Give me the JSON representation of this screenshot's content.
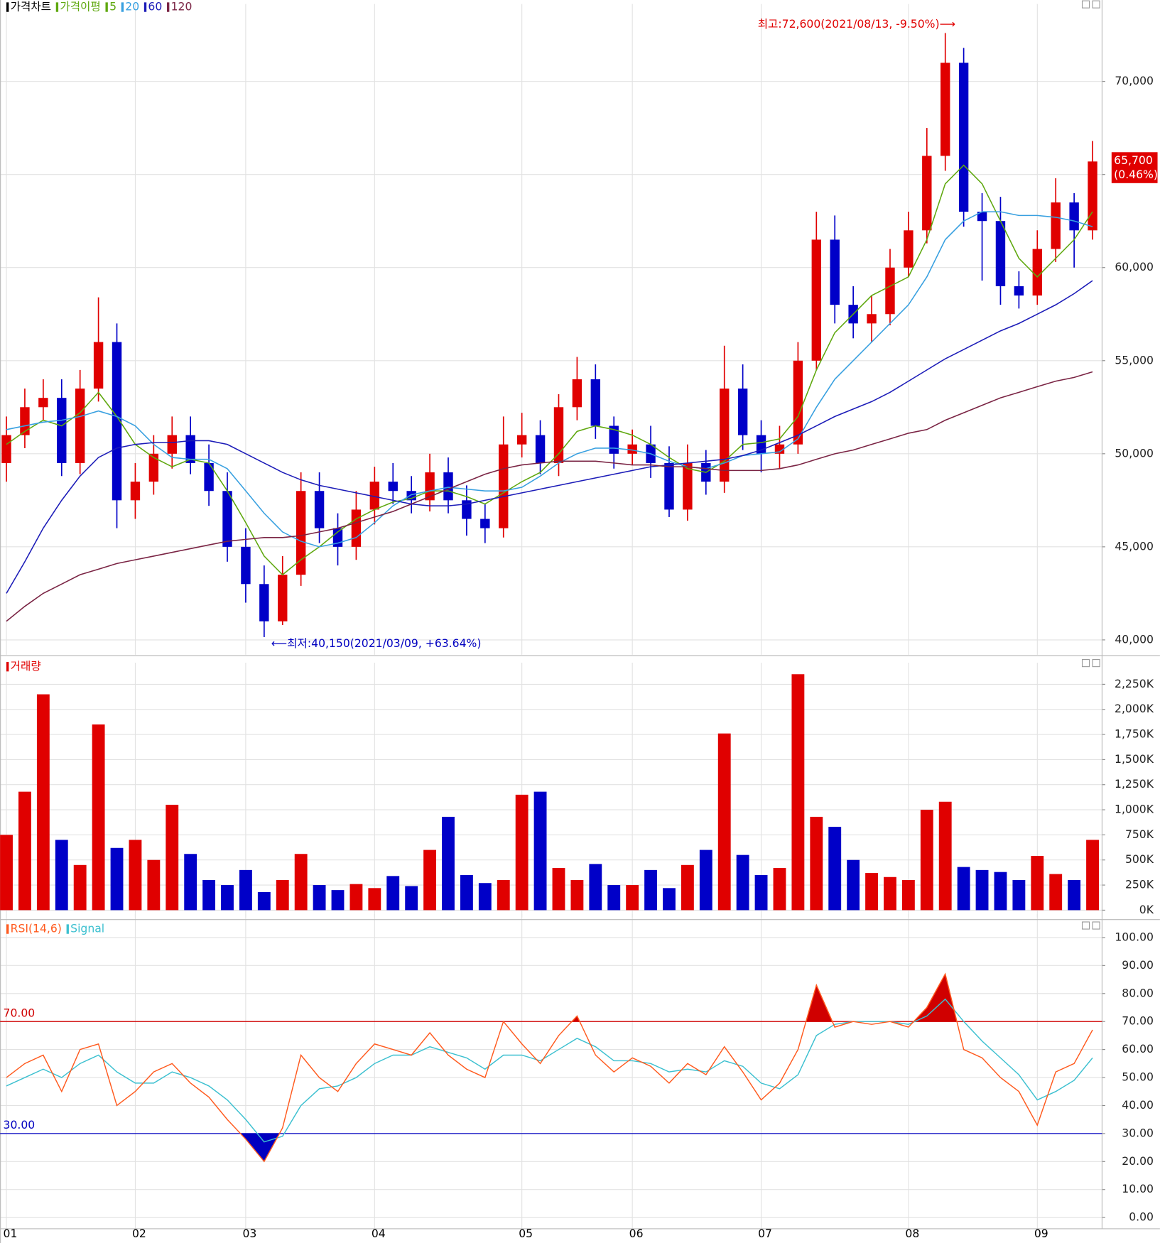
{
  "chart_data": [
    {
      "type": "candlestick",
      "title": "가격차트",
      "ma_title": "가격이평",
      "up_color": "#e00000",
      "down_color": "#0000c8",
      "opens": [
        49500,
        51000,
        52500,
        53000,
        49500,
        53500,
        56000,
        47500,
        48500,
        50000,
        51000,
        49500,
        48000,
        45000,
        43000,
        41000,
        43500,
        48000,
        46000,
        45000,
        47000,
        48500,
        48000,
        47500,
        49000,
        47500,
        46500,
        46000,
        50500,
        51000,
        49500,
        52500,
        54000,
        51500,
        50000,
        50500,
        49500,
        47000,
        49500,
        48500,
        53500,
        51000,
        50000,
        50500,
        55000,
        61500,
        58000,
        57000,
        57500,
        60000,
        62000,
        66000,
        71000,
        63000,
        62500,
        59000,
        58500,
        61000,
        63500,
        62000
      ],
      "highs": [
        52000,
        53500,
        54000,
        54000,
        54500,
        58400,
        57000,
        49500,
        51000,
        52000,
        52000,
        50500,
        49000,
        46000,
        44000,
        44500,
        49000,
        49000,
        46800,
        48000,
        49300,
        49500,
        48800,
        50000,
        49800,
        48300,
        47300,
        52000,
        52200,
        51800,
        53200,
        55200,
        54800,
        52000,
        51300,
        51500,
        50400,
        50500,
        50200,
        55800,
        54800,
        51800,
        51500,
        56000,
        63000,
        62800,
        59000,
        58500,
        61000,
        63000,
        67500,
        72600,
        71800,
        64000,
        63800,
        59800,
        62000,
        64800,
        64000,
        66800
      ],
      "lows": [
        48500,
        50300,
        51800,
        48800,
        48900,
        52800,
        46000,
        46500,
        47800,
        49200,
        48900,
        47200,
        44200,
        42000,
        40150,
        40800,
        42900,
        45200,
        44000,
        44300,
        46200,
        47300,
        46800,
        46900,
        46800,
        45600,
        45200,
        45500,
        49800,
        48900,
        48800,
        51800,
        50800,
        49200,
        49400,
        48700,
        46600,
        46400,
        47800,
        47900,
        50200,
        49000,
        49200,
        50000,
        54500,
        57000,
        56200,
        56000,
        56900,
        59500,
        61300,
        65200,
        62200,
        59300,
        58000,
        57800,
        58000,
        60300,
        60000,
        61500
      ],
      "closes": [
        51000,
        52500,
        53000,
        49500,
        53500,
        56000,
        47500,
        48500,
        50000,
        51000,
        49500,
        48000,
        45000,
        43000,
        41000,
        43500,
        48000,
        46000,
        45000,
        47000,
        48500,
        48000,
        47500,
        49000,
        47500,
        46500,
        46000,
        50500,
        51000,
        49500,
        52500,
        54000,
        51500,
        50000,
        50500,
        49500,
        47000,
        49500,
        48500,
        53500,
        51000,
        50000,
        50500,
        55000,
        61500,
        58000,
        57000,
        57500,
        60000,
        62000,
        66000,
        71000,
        63000,
        62500,
        59000,
        58500,
        61000,
        63500,
        62000,
        65700
      ],
      "series": [
        {
          "name": "5",
          "color": "#5fa80f",
          "values": [
            50500,
            51200,
            51800,
            51500,
            52200,
            53300,
            52000,
            50500,
            49800,
            49300,
            49700,
            49500,
            48000,
            46300,
            44500,
            43500,
            44300,
            45000,
            45800,
            46500,
            47000,
            47400,
            47600,
            48000,
            48000,
            47700,
            47300,
            47900,
            48500,
            49000,
            50000,
            51200,
            51500,
            51300,
            51000,
            50500,
            49800,
            49200,
            49000,
            49600,
            50500,
            50600,
            50800,
            52000,
            54500,
            56500,
            57500,
            58500,
            59000,
            59500,
            61500,
            64500,
            65500,
            64500,
            62500,
            60500,
            59500,
            60500,
            61500,
            63000
          ]
        },
        {
          "name": "20",
          "color": "#38a0e0",
          "values": [
            51300,
            51500,
            51700,
            51800,
            52000,
            52300,
            52000,
            51500,
            50500,
            49800,
            49700,
            49700,
            49200,
            48000,
            46800,
            45800,
            45300,
            45000,
            45200,
            45500,
            46300,
            47200,
            47800,
            48000,
            48200,
            48100,
            48000,
            48000,
            48200,
            48800,
            49500,
            50000,
            50300,
            50300,
            50200,
            50000,
            49600,
            49300,
            49200,
            49500,
            49900,
            50000,
            50100,
            50800,
            52500,
            54000,
            55000,
            56000,
            57000,
            58000,
            59500,
            61500,
            62500,
            63000,
            63000,
            62800,
            62800,
            62700,
            62500,
            62200
          ]
        },
        {
          "name": "60",
          "color": "#1c1cb8",
          "values": [
            42500,
            44200,
            46000,
            47500,
            48800,
            49800,
            50300,
            50500,
            50600,
            50600,
            50700,
            50700,
            50500,
            50000,
            49500,
            49000,
            48600,
            48300,
            48100,
            47900,
            47700,
            47500,
            47300,
            47200,
            47200,
            47300,
            47500,
            47700,
            47900,
            48100,
            48300,
            48500,
            48700,
            48900,
            49100,
            49300,
            49400,
            49500,
            49600,
            49700,
            49900,
            50200,
            50600,
            51000,
            51500,
            52000,
            52400,
            52800,
            53300,
            53900,
            54500,
            55100,
            55600,
            56100,
            56600,
            57000,
            57500,
            58000,
            58600,
            59300
          ]
        },
        {
          "name": "120",
          "color": "#7a2444",
          "values": [
            41000,
            41800,
            42500,
            43000,
            43500,
            43800,
            44100,
            44300,
            44500,
            44700,
            44900,
            45100,
            45300,
            45400,
            45500,
            45500,
            45600,
            45800,
            46000,
            46300,
            46600,
            46900,
            47300,
            47700,
            48100,
            48500,
            48900,
            49200,
            49400,
            49500,
            49600,
            49600,
            49600,
            49500,
            49400,
            49400,
            49300,
            49300,
            49200,
            49100,
            49100,
            49100,
            49200,
            49400,
            49700,
            50000,
            50200,
            50500,
            50800,
            51100,
            51300,
            51800,
            52200,
            52600,
            53000,
            53300,
            53600,
            53900,
            54100,
            54400
          ]
        }
      ],
      "ylim": [
        39200,
        73650
      ],
      "yticks": [
        {
          "value": 40000,
          "label": "40,000"
        },
        {
          "value": 45000,
          "label": "45,000"
        },
        {
          "value": 50000,
          "label": "50,000"
        },
        {
          "value": 55000,
          "label": "55,000"
        },
        {
          "value": 60000,
          "label": "60,000"
        },
        {
          "value": 65000,
          "label": "65,000"
        },
        {
          "value": 70000,
          "label": "70,000"
        }
      ],
      "annotations": {
        "high": "최고:72,600(2021/08/13, -9.50%)⟶",
        "low": "⟵최저:40,150(2021/03/09, +63.64%)",
        "last_price": "65,700",
        "last_change": "(0.46%)"
      }
    },
    {
      "type": "bar",
      "title": "거래량",
      "color": "#e00000",
      "values": [
        750000,
        1180000,
        2150000,
        700000,
        450000,
        1850000,
        620000,
        700000,
        500000,
        1050000,
        560000,
        300000,
        250000,
        400000,
        180000,
        300000,
        560000,
        250000,
        200000,
        260000,
        220000,
        340000,
        240000,
        600000,
        930000,
        350000,
        270000,
        300000,
        1150000,
        1180000,
        420000,
        300000,
        460000,
        250000,
        250000,
        400000,
        220000,
        450000,
        600000,
        1760000,
        550000,
        350000,
        420000,
        2350000,
        930000,
        830000,
        500000,
        370000,
        330000,
        300000,
        1000000,
        1080000,
        430000,
        400000,
        380000,
        300000,
        540000,
        360000,
        300000,
        700000
      ],
      "ylim": [
        -70000,
        2370000
      ],
      "yticks": [
        {
          "value": 0,
          "label": "0K"
        },
        {
          "value": 250000,
          "label": "250K"
        },
        {
          "value": 500000,
          "label": "500K"
        },
        {
          "value": 750000,
          "label": "750K"
        },
        {
          "value": 1000000,
          "label": "1,000K"
        },
        {
          "value": 1250000,
          "label": "1,250K"
        },
        {
          "value": 1500000,
          "label": "1,500K"
        },
        {
          "value": 1750000,
          "label": "1,750K"
        },
        {
          "value": 2000000,
          "label": "2,000K"
        },
        {
          "value": 2250000,
          "label": "2,250K"
        }
      ]
    },
    {
      "type": "line",
      "categories": [
        "01",
        null,
        null,
        null,
        null,
        null,
        null,
        "02",
        null,
        null,
        null,
        null,
        null,
        "03",
        null,
        null,
        null,
        null,
        null,
        null,
        "04",
        null,
        null,
        null,
        null,
        null,
        null,
        null,
        "05",
        null,
        null,
        null,
        null,
        null,
        "06",
        null,
        null,
        null,
        null,
        null,
        null,
        "07",
        null,
        null,
        null,
        null,
        null,
        null,
        null,
        "08",
        null,
        null,
        null,
        null,
        null,
        null,
        "09",
        null,
        null,
        null
      ],
      "series": [
        {
          "name": "RSI(14,6)",
          "color": "#ff5a1e",
          "values": [
            50,
            55,
            58,
            45,
            60,
            62,
            40,
            45,
            52,
            55,
            48,
            43,
            35,
            28,
            20,
            32,
            58,
            50,
            45,
            55,
            62,
            60,
            58,
            66,
            58,
            53,
            50,
            70,
            62,
            55,
            65,
            72,
            58,
            52,
            57,
            54,
            48,
            55,
            51,
            61,
            52,
            42,
            48,
            60,
            83,
            68,
            70,
            69,
            70,
            68,
            75,
            87,
            60,
            57,
            50,
            45,
            33,
            52,
            55,
            67
          ]
        },
        {
          "name": "Signal",
          "color": "#3cc0d0",
          "values": [
            47,
            50,
            53,
            50,
            55,
            58,
            52,
            48,
            48,
            52,
            50,
            47,
            42,
            35,
            27,
            29,
            40,
            46,
            47,
            50,
            55,
            58,
            58,
            61,
            59,
            57,
            53,
            58,
            58,
            56,
            60,
            64,
            61,
            56,
            56,
            55,
            52,
            53,
            52,
            56,
            54,
            48,
            46,
            51,
            65,
            69,
            70,
            70,
            70,
            69,
            72,
            78,
            70,
            63,
            57,
            51,
            42,
            45,
            49,
            57
          ]
        }
      ],
      "levels": [
        {
          "value": 70,
          "label": "70.00",
          "color": "#d00000"
        },
        {
          "value": 30,
          "label": "30.00",
          "color": "#0000c0"
        }
      ],
      "ylim": [
        -4,
        105
      ],
      "yticks": [
        {
          "value": 0,
          "label": "0.00"
        },
        {
          "value": 10,
          "label": "10.00"
        },
        {
          "value": 20,
          "label": "20.00"
        },
        {
          "value": 30,
          "label": "30.00"
        },
        {
          "value": 40,
          "label": "40.00"
        },
        {
          "value": 50,
          "label": "50.00"
        },
        {
          "value": 60,
          "label": "60.00"
        },
        {
          "value": 70,
          "label": "70.00"
        },
        {
          "value": 80,
          "label": "80.00"
        },
        {
          "value": 90,
          "label": "90.00"
        },
        {
          "value": 100,
          "label": "100.00"
        }
      ]
    }
  ]
}
